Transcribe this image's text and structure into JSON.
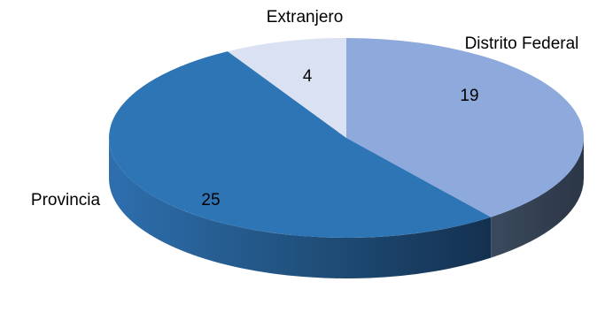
{
  "chart_data": {
    "type": "pie",
    "style": "3d",
    "categories": [
      "Distrito Federal",
      "Provincia",
      "Extranjero"
    ],
    "values": [
      19,
      25,
      4
    ],
    "colors": [
      "#8EA9DB",
      "#2E75B6",
      "#D9E1F2"
    ],
    "side_colors": [
      "#3A4A5E",
      "#1F4E79",
      "#9AA3B5"
    ],
    "title": "",
    "legend": "none",
    "data_labels": true
  }
}
